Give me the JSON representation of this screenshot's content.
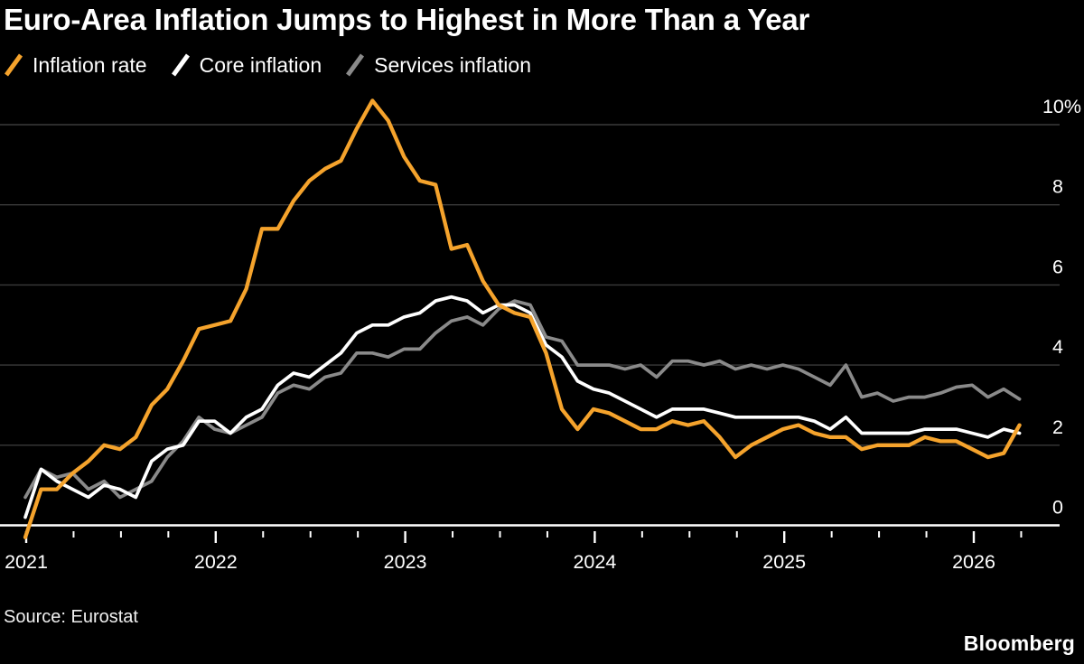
{
  "header": {
    "title": "Euro-Area Inflation Jumps to Highest in More Than a Year"
  },
  "legend": [
    {
      "label": "Inflation rate",
      "color": "#F5A32C",
      "icon": "slash-swatch-icon"
    },
    {
      "label": "Core inflation",
      "color": "#FFFFFF",
      "icon": "slash-swatch-icon"
    },
    {
      "label": "Services inflation",
      "color": "#8A8A8A",
      "icon": "slash-swatch-icon"
    }
  ],
  "footer": {
    "source": "Source: Eurostat",
    "brand": "Bloomberg"
  },
  "chart_data": {
    "type": "line",
    "title": "Euro-Area Inflation Jumps to Highest in More Than a Year",
    "x_start": "2020-12",
    "x_freq": "monthly",
    "x_tick_labels": [
      "2021",
      "2022",
      "2023",
      "2024",
      "2025",
      "2026"
    ],
    "y_ticks": [
      0,
      2,
      4,
      6,
      8,
      10
    ],
    "y_top_label": "10%",
    "ylim": [
      -0.5,
      10.8
    ],
    "grid": "horizontal",
    "legend_position": "top-left",
    "colors": {
      "background": "#000000",
      "gridline": "#3A3A3A",
      "axis": "#FFFFFF",
      "tick_text": "#FFFFFF"
    },
    "series": [
      {
        "name": "Inflation rate",
        "color": "#F5A32C",
        "values": [
          -0.3,
          0.9,
          0.9,
          1.3,
          1.6,
          2.0,
          1.9,
          2.2,
          3.0,
          3.4,
          4.1,
          4.9,
          5.0,
          5.1,
          5.9,
          7.4,
          7.4,
          8.1,
          8.6,
          8.9,
          9.1,
          9.9,
          10.6,
          10.1,
          9.2,
          8.6,
          8.5,
          6.9,
          7.0,
          6.1,
          5.5,
          5.3,
          5.2,
          4.3,
          2.9,
          2.4,
          2.9,
          2.8,
          2.6,
          2.4,
          2.4,
          2.6,
          2.5,
          2.6,
          2.2,
          1.7,
          2.0,
          2.2,
          2.4,
          2.5,
          2.3,
          2.2,
          2.2,
          1.9,
          2.0,
          2.0,
          2.0,
          2.2,
          2.1,
          2.1,
          1.9,
          1.7,
          1.8,
          2.5
        ]
      },
      {
        "name": "Core inflation",
        "color": "#FFFFFF",
        "values": [
          0.2,
          1.4,
          1.1,
          0.9,
          0.7,
          1.0,
          0.9,
          0.7,
          1.6,
          1.9,
          2.0,
          2.6,
          2.6,
          2.3,
          2.7,
          2.9,
          3.5,
          3.8,
          3.7,
          4.0,
          4.3,
          4.8,
          5.0,
          5.0,
          5.2,
          5.3,
          5.6,
          5.7,
          5.6,
          5.3,
          5.5,
          5.5,
          5.3,
          4.5,
          4.2,
          3.6,
          3.4,
          3.3,
          3.1,
          2.9,
          2.7,
          2.9,
          2.9,
          2.9,
          2.8,
          2.7,
          2.7,
          2.7,
          2.7,
          2.7,
          2.6,
          2.4,
          2.7,
          2.3,
          2.3,
          2.3,
          2.3,
          2.4,
          2.4,
          2.4,
          2.3,
          2.2,
          2.4,
          2.3
        ]
      },
      {
        "name": "Services inflation",
        "color": "#8A8A8A",
        "values": [
          0.7,
          1.4,
          1.2,
          1.3,
          0.9,
          1.1,
          0.7,
          0.9,
          1.1,
          1.7,
          2.1,
          2.7,
          2.4,
          2.3,
          2.5,
          2.7,
          3.3,
          3.5,
          3.4,
          3.7,
          3.8,
          4.3,
          4.3,
          4.2,
          4.4,
          4.4,
          4.8,
          5.1,
          5.2,
          5.0,
          5.4,
          5.6,
          5.5,
          4.7,
          4.6,
          4.0,
          4.0,
          4.0,
          3.9,
          4.0,
          3.7,
          4.1,
          4.1,
          4.0,
          4.1,
          3.9,
          4.0,
          3.9,
          4.0,
          3.9,
          3.7,
          3.5,
          4.0,
          3.2,
          3.3,
          3.1,
          3.2,
          3.2,
          3.3,
          3.45,
          3.5,
          3.2,
          3.4,
          3.15
        ]
      }
    ]
  }
}
